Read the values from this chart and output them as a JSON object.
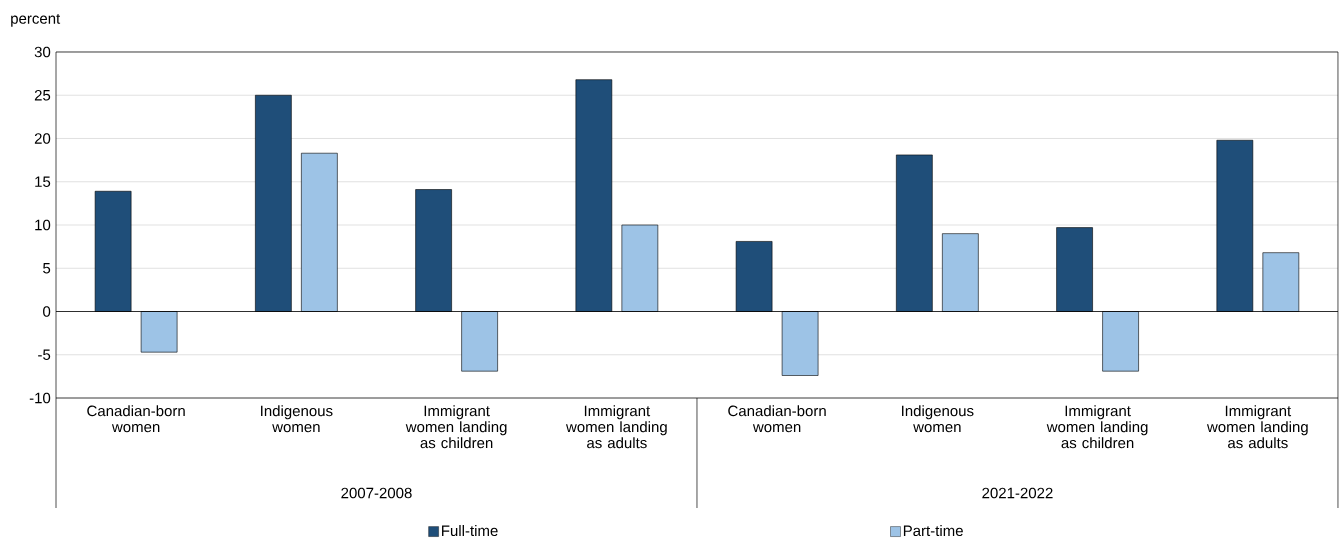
{
  "chart_data": {
    "type": "bar",
    "ylabel": "percent",
    "categories": [
      "Canadian-born women",
      "Indigenous women",
      "Immigrant women landing as children",
      "Immigrant women landing as adults",
      "Canadian-born women",
      "Indigenous women",
      "Immigrant women landing as children",
      "Immigrant women landing as adults"
    ],
    "series": [
      {
        "name": "Full-time",
        "color": "#1f4e79",
        "values": [
          13.9,
          25.0,
          14.1,
          26.8,
          8.1,
          18.1,
          9.7,
          19.8
        ]
      },
      {
        "name": "Part-time",
        "color": "#9dc3e6",
        "values": [
          -4.7,
          18.3,
          -6.9,
          10.0,
          -7.4,
          9.0,
          -6.9,
          6.8
        ]
      }
    ],
    "ylim": [
      -10,
      30
    ],
    "yticks": [
      -10,
      -5,
      0,
      5,
      10,
      15,
      20,
      25,
      30
    ],
    "grid": "y",
    "legend": "bottom",
    "annotations": [
      "2007-2008",
      "2021-2022"
    ]
  }
}
